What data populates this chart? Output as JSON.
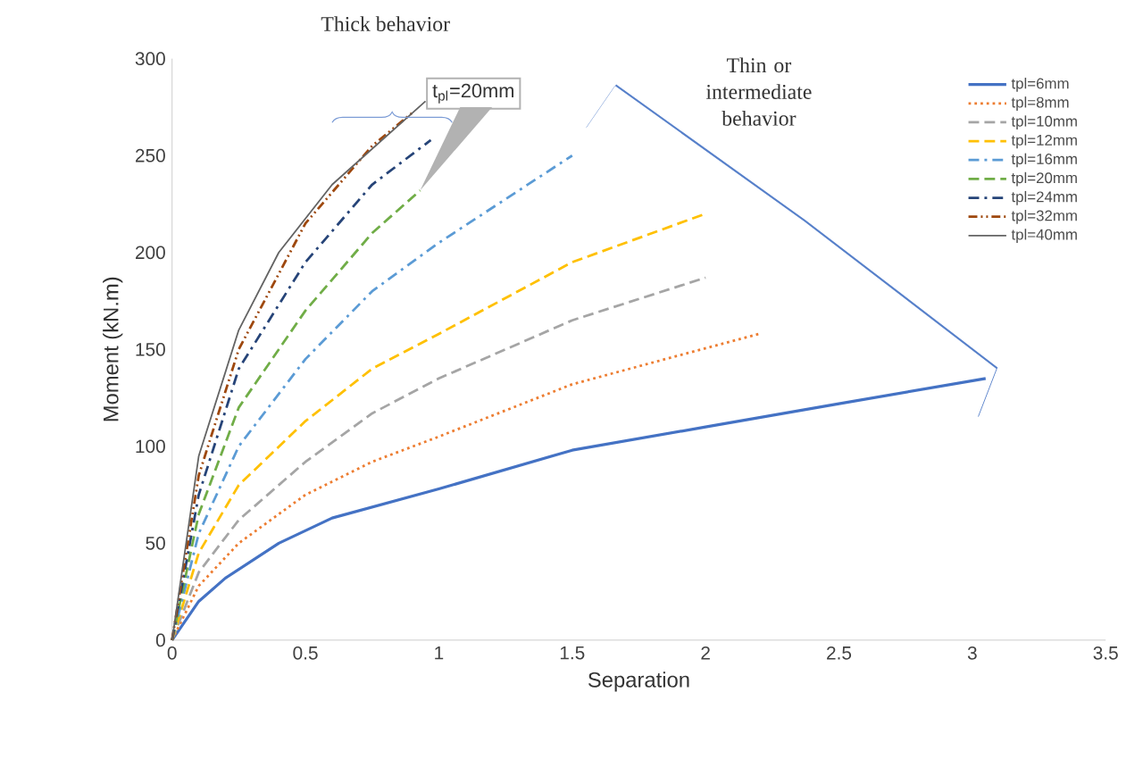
{
  "chart_data": {
    "type": "line",
    "xlabel": "Separation",
    "ylabel": "Moment (kN.m)",
    "xlim": [
      0,
      3.5
    ],
    "ylim": [
      0,
      300
    ],
    "xticks": [
      0,
      0.5,
      1,
      1.5,
      2,
      2.5,
      3,
      3.5
    ],
    "yticks": [
      0,
      50,
      100,
      150,
      200,
      250,
      300
    ],
    "grid": false,
    "legend": "top right",
    "marker": "none",
    "annotations": [
      "Thick behavior",
      "t$_{pl}$=20mm",
      "Thin or intermediate behavior"
    ],
    "series": [
      {
        "name": "tpl=6mm",
        "color": "#4472c4",
        "line_style": "solid",
        "x": [
          0,
          0.1,
          0.2,
          0.4,
          0.6,
          1,
          1.5,
          2,
          2.5,
          3.05
        ],
        "values": [
          0,
          20,
          32,
          50,
          63,
          78,
          98,
          110,
          122,
          135
        ]
      },
      {
        "name": "tpl=8mm",
        "color": "#ed7d31",
        "line_style": "dotted",
        "x": [
          0,
          0.1,
          0.25,
          0.5,
          0.75,
          1,
          1.5,
          2.2
        ],
        "values": [
          0,
          28,
          50,
          75,
          92,
          105,
          132,
          158
        ]
      },
      {
        "name": "tpl=10mm",
        "color": "#a5a5a5",
        "line_style": "dashed",
        "x": [
          0,
          0.1,
          0.25,
          0.5,
          0.75,
          1,
          1.5,
          2
        ],
        "values": [
          0,
          35,
          62,
          92,
          117,
          135,
          165,
          187
        ]
      },
      {
        "name": "tpl=12mm",
        "color": "#ffc000",
        "line_style": "dashed",
        "x": [
          0,
          0.1,
          0.25,
          0.5,
          0.75,
          1,
          1.5,
          2
        ],
        "values": [
          0,
          45,
          80,
          113,
          140,
          158,
          195,
          220
        ]
      },
      {
        "name": "tpl=16mm",
        "color": "#5b9bd5",
        "line_style": "dashdot",
        "x": [
          0,
          0.1,
          0.25,
          0.5,
          0.75,
          1,
          1.5
        ],
        "values": [
          0,
          55,
          100,
          145,
          180,
          205,
          250
        ]
      },
      {
        "name": "tpl=20mm",
        "color": "#70ad47",
        "line_style": "dashed",
        "x": [
          0,
          0.1,
          0.25,
          0.5,
          0.75,
          0.93
        ],
        "values": [
          0,
          65,
          120,
          170,
          210,
          232
        ]
      },
      {
        "name": "tpl=24mm",
        "color": "#264478",
        "line_style": "dashdot",
        "x": [
          0,
          0.1,
          0.25,
          0.5,
          0.75,
          0.97
        ],
        "values": [
          0,
          75,
          140,
          195,
          235,
          258
        ]
      },
      {
        "name": "tpl=32mm",
        "color": "#9e480e",
        "line_style": "dashdotdot",
        "x": [
          0,
          0.1,
          0.25,
          0.5,
          0.75,
          0.9
        ],
        "values": [
          0,
          85,
          150,
          215,
          255,
          272
        ]
      },
      {
        "name": "tpl=40mm",
        "color": "#636363",
        "line_style": "solid",
        "x": [
          0,
          0.1,
          0.25,
          0.4,
          0.6,
          0.95
        ],
        "values": [
          0,
          95,
          160,
          200,
          235,
          278
        ]
      }
    ]
  }
}
